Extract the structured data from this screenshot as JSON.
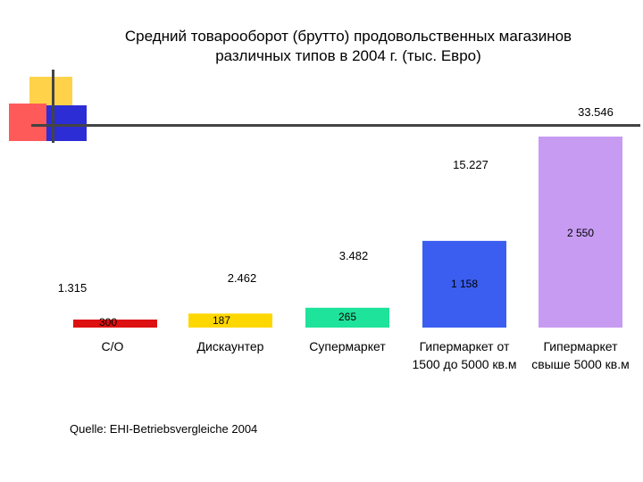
{
  "title": {
    "line1": "Средний товарооборот (брутто) продовольственных магазинов",
    "line2": "различных типов в 2004 г. (тыс. Евро)"
  },
  "source": "Quelle: EHI-Betriebsvergleiche 2004",
  "colors": {
    "deco_yellow": "#ffd24a",
    "deco_red": "#ff5a5a",
    "deco_blue": "#2d2dd6",
    "deco_line": "#444444"
  },
  "chart_data": {
    "type": "bar",
    "title": "Средний товарооборот (брутто) продовольственных магазинов различных типов в 2004 г. (тыс. Евро)",
    "categories": [
      {
        "line1": "С/О",
        "line2": ""
      },
      {
        "line1": "Дискаунтер",
        "line2": ""
      },
      {
        "line1": "Супермаркет",
        "line2": ""
      },
      {
        "line1": "Гипермаркет от",
        "line2": "1500 до 5000 кв.м"
      },
      {
        "line1": "Гипермаркет",
        "line2": "свыше 5000 кв.м"
      }
    ],
    "values": [
      1315,
      2462,
      3482,
      15227,
      33546
    ],
    "value_labels": [
      "1.315",
      "2.462",
      "3.482",
      "15.227",
      "33.546"
    ],
    "inner_labels": [
      "300",
      "187",
      "265",
      "1 158",
      "2 550"
    ],
    "colors": [
      "#dd1111",
      "#ffd700",
      "#1ee39b",
      "#3b5ef0",
      "#c79bf2"
    ],
    "ylim": [
      0,
      33546
    ],
    "grid": false
  }
}
